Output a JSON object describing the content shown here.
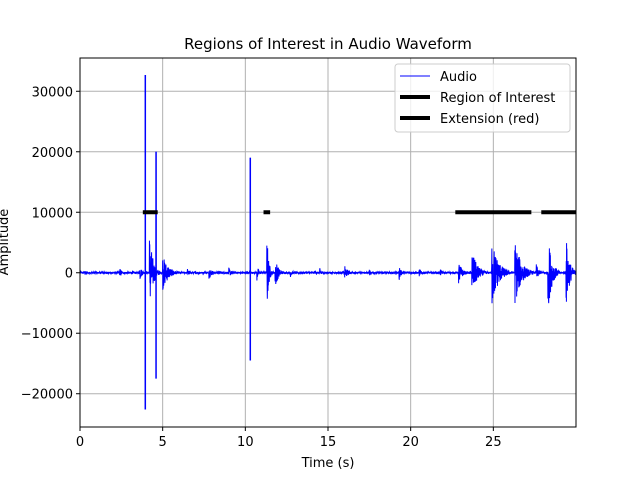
{
  "chart_data": {
    "type": "line",
    "title": "Regions of Interest in Audio Waveform",
    "xlabel": "Time (s)",
    "ylabel": "Amplitude",
    "xlim": [
      0,
      30
    ],
    "ylim": [
      -25500,
      35500
    ],
    "x_ticks": [
      0,
      5,
      10,
      15,
      20,
      25
    ],
    "y_ticks": [
      -20000,
      -10000,
      0,
      10000,
      20000,
      30000
    ],
    "x_tick_labels": [
      "0",
      "5",
      "10",
      "15",
      "20",
      "25"
    ],
    "y_tick_labels": [
      "−20000",
      "−10000",
      "0",
      "10000",
      "20000",
      "30000"
    ],
    "grid": true,
    "legend_position": "top-right",
    "series": [
      {
        "name": "Audio",
        "color": "#0000ff",
        "style": "line",
        "bursts": [
          {
            "t": 0.3,
            "amp": 400,
            "len": 0.3
          },
          {
            "t": 1.2,
            "amp": 300,
            "len": 0.3
          },
          {
            "t": 2.4,
            "amp": 900,
            "len": 0.3
          },
          {
            "t": 3.6,
            "amp": 1500,
            "len": 0.4
          },
          {
            "t": 3.95,
            "amp": 32700,
            "neg": 22600,
            "len": 0.05
          },
          {
            "t": 4.2,
            "amp": 7000,
            "len": 0.6
          },
          {
            "t": 4.6,
            "amp": 20000,
            "neg": 17500,
            "len": 0.05
          },
          {
            "t": 5.0,
            "amp": 3000,
            "len": 1.0
          },
          {
            "t": 6.5,
            "amp": 700,
            "len": 0.4
          },
          {
            "t": 7.8,
            "amp": 1000,
            "len": 0.6
          },
          {
            "t": 9.0,
            "amp": 800,
            "len": 0.5
          },
          {
            "t": 10.3,
            "amp": 19000,
            "neg": 14500,
            "len": 0.05
          },
          {
            "t": 10.7,
            "amp": 1500,
            "len": 0.3
          },
          {
            "t": 11.3,
            "amp": 7200,
            "neg": 7000,
            "len": 0.3
          },
          {
            "t": 11.8,
            "amp": 3000,
            "len": 0.5
          },
          {
            "t": 12.7,
            "amp": 900,
            "len": 0.4
          },
          {
            "t": 14.5,
            "amp": 800,
            "len": 0.5
          },
          {
            "t": 16.0,
            "amp": 1200,
            "len": 0.6
          },
          {
            "t": 17.5,
            "amp": 500,
            "len": 0.4
          },
          {
            "t": 19.3,
            "amp": 1500,
            "len": 0.3
          },
          {
            "t": 20.5,
            "amp": 700,
            "len": 0.4
          },
          {
            "t": 21.8,
            "amp": 500,
            "len": 0.4
          },
          {
            "t": 22.9,
            "amp": 2000,
            "len": 0.6
          },
          {
            "t": 23.7,
            "amp": 4000,
            "len": 0.9
          },
          {
            "t": 24.9,
            "amp": 6000,
            "len": 1.1
          },
          {
            "t": 26.3,
            "amp": 5500,
            "len": 1.1
          },
          {
            "t": 27.6,
            "amp": 1500,
            "len": 0.4
          },
          {
            "t": 28.3,
            "amp": 6500,
            "len": 0.7
          },
          {
            "t": 29.4,
            "amp": 6000,
            "len": 0.6
          }
        ]
      },
      {
        "name": "Region of Interest",
        "color": "#000000",
        "style": "segments",
        "y": 10000,
        "segments": [
          [
            3.8,
            4.7
          ],
          [
            11.1,
            11.5
          ],
          [
            22.7,
            27.3
          ]
        ]
      },
      {
        "name": "Extension (red)",
        "color": "#000000",
        "style": "segments",
        "y": 10000,
        "segments": [
          [
            27.9,
            30.0
          ]
        ]
      }
    ]
  }
}
